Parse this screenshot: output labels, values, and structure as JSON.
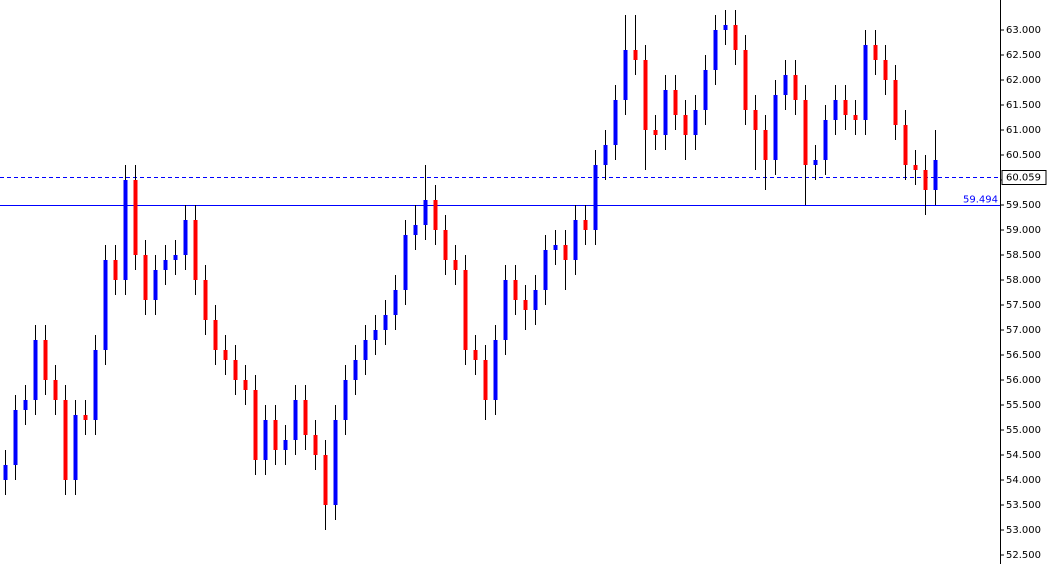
{
  "chart_data": {
    "type": "candlestick",
    "up_color": "#0000ff",
    "down_color": "#ff0000",
    "wick_color": "#000000",
    "ylim": [
      52.32,
      63.6
    ],
    "yticks": [
      {
        "value": 52.5,
        "label": "52.500"
      },
      {
        "value": 53,
        "label": "53.000"
      },
      {
        "value": 53.5,
        "label": "53.500"
      },
      {
        "value": 54,
        "label": "54.000"
      },
      {
        "value": 54.5,
        "label": "54.500"
      },
      {
        "value": 55,
        "label": "55.000"
      },
      {
        "value": 55.5,
        "label": "55.500"
      },
      {
        "value": 56,
        "label": "56.000"
      },
      {
        "value": 56.5,
        "label": "56.500"
      },
      {
        "value": 57,
        "label": "57.000"
      },
      {
        "value": 57.5,
        "label": "57.500"
      },
      {
        "value": 58,
        "label": "58.000"
      },
      {
        "value": 58.5,
        "label": "58.500"
      },
      {
        "value": 59,
        "label": "59.000"
      },
      {
        "value": 59.5,
        "label": "59.500"
      },
      {
        "value": 60,
        "label": "60.000"
      },
      {
        "value": 60.5,
        "label": "60.500"
      },
      {
        "value": 61,
        "label": "61.000"
      },
      {
        "value": 61.5,
        "label": "61.500"
      },
      {
        "value": 62,
        "label": "62.000"
      },
      {
        "value": 62.5,
        "label": "62.500"
      },
      {
        "value": 63,
        "label": "63.000"
      }
    ],
    "hlines": [
      {
        "value": 60.059,
        "label": "60.059",
        "style": "dashed",
        "label_position": "axis",
        "color": "#0000ff"
      },
      {
        "value": 59.494,
        "label": "59.494",
        "style": "solid",
        "label_position": "inside",
        "color": "#0000ff"
      }
    ],
    "open": [
      54.0,
      54.3,
      55.4,
      55.6,
      56.8,
      56.0,
      55.6,
      54.0,
      55.3,
      55.2,
      56.6,
      58.4,
      58.0,
      60.0,
      58.5,
      57.6,
      58.2,
      58.4,
      58.5,
      59.2,
      58.0,
      57.2,
      56.6,
      56.4,
      56.0,
      55.8,
      54.4,
      55.2,
      54.6,
      54.8,
      55.6,
      54.9,
      54.5,
      53.5,
      55.2,
      56.0,
      56.4,
      56.8,
      57.0,
      57.3,
      57.8,
      58.9,
      59.1,
      59.6,
      59.0,
      58.4,
      58.2,
      56.6,
      56.4,
      55.6,
      56.8,
      58.0,
      57.6,
      57.4,
      57.8,
      58.6,
      58.7,
      58.4,
      59.2,
      59.0,
      60.3,
      60.7,
      61.6,
      62.6,
      62.4,
      61.0,
      60.9,
      61.8,
      61.3,
      60.9,
      61.4,
      62.2,
      63.0,
      63.1,
      62.6,
      61.4,
      61.0,
      60.4,
      61.7,
      62.1,
      61.6,
      60.3,
      60.4,
      61.2,
      61.6,
      61.3,
      61.2,
      62.7,
      62.4,
      62.0,
      61.1,
      60.3,
      60.2,
      59.8
    ],
    "high": [
      54.6,
      55.7,
      55.9,
      57.1,
      57.1,
      56.3,
      55.9,
      55.6,
      55.6,
      56.9,
      58.7,
      58.7,
      60.3,
      60.3,
      58.8,
      58.5,
      58.7,
      58.8,
      59.5,
      59.5,
      58.3,
      57.5,
      56.9,
      56.7,
      56.3,
      56.1,
      55.5,
      55.5,
      55.1,
      55.9,
      55.9,
      55.2,
      54.8,
      55.5,
      56.3,
      56.7,
      57.1,
      57.3,
      57.6,
      58.1,
      59.2,
      59.5,
      60.3,
      59.9,
      59.3,
      58.7,
      58.5,
      56.9,
      56.7,
      57.1,
      58.3,
      58.3,
      57.9,
      58.1,
      58.9,
      59.0,
      59.0,
      59.5,
      59.5,
      60.6,
      61.0,
      61.9,
      63.3,
      63.3,
      62.7,
      61.3,
      62.1,
      62.1,
      61.6,
      61.7,
      62.5,
      63.3,
      63.4,
      63.4,
      62.9,
      61.7,
      61.3,
      62.0,
      62.4,
      62.4,
      61.9,
      60.7,
      61.5,
      61.9,
      61.9,
      61.6,
      63.0,
      63.0,
      62.7,
      62.3,
      61.4,
      60.6,
      60.5,
      61.0
    ],
    "low": [
      53.7,
      54.0,
      55.1,
      55.3,
      55.7,
      55.3,
      53.7,
      53.7,
      54.9,
      54.9,
      56.3,
      57.7,
      57.7,
      58.2,
      57.3,
      57.3,
      57.9,
      58.1,
      58.2,
      57.7,
      56.9,
      56.3,
      56.1,
      55.7,
      55.5,
      54.1,
      54.1,
      54.3,
      54.3,
      54.5,
      54.6,
      54.2,
      53.0,
      53.2,
      54.9,
      55.7,
      56.1,
      56.5,
      56.7,
      57.0,
      57.5,
      58.6,
      58.8,
      58.7,
      58.1,
      57.9,
      56.3,
      56.1,
      55.2,
      55.3,
      56.5,
      57.3,
      57.0,
      57.1,
      57.5,
      58.3,
      57.8,
      58.1,
      58.7,
      58.7,
      60.0,
      60.4,
      61.3,
      62.1,
      60.2,
      60.6,
      60.6,
      61.0,
      60.4,
      60.6,
      61.1,
      61.9,
      62.7,
      62.3,
      61.1,
      60.2,
      59.8,
      60.1,
      61.4,
      61.3,
      59.5,
      60.0,
      60.1,
      60.9,
      61.0,
      60.9,
      60.9,
      62.1,
      61.7,
      60.8,
      60.0,
      59.9,
      59.3,
      59.5
    ],
    "close": [
      54.3,
      55.4,
      55.6,
      56.8,
      56.0,
      55.6,
      54.0,
      55.3,
      55.2,
      56.6,
      58.4,
      58.0,
      60.0,
      58.5,
      57.6,
      58.2,
      58.4,
      58.5,
      59.2,
      58.0,
      57.2,
      56.6,
      56.4,
      56.0,
      55.8,
      54.4,
      55.2,
      54.6,
      54.8,
      55.6,
      54.9,
      54.5,
      53.5,
      55.2,
      56.0,
      56.4,
      56.8,
      57.0,
      57.3,
      57.8,
      58.9,
      59.1,
      59.6,
      59.0,
      58.4,
      58.2,
      56.6,
      56.4,
      55.6,
      56.8,
      58.0,
      57.6,
      57.4,
      57.8,
      58.6,
      58.7,
      58.4,
      59.2,
      59.0,
      60.3,
      60.7,
      61.6,
      62.6,
      62.4,
      61.0,
      60.9,
      61.8,
      61.3,
      60.9,
      61.4,
      62.2,
      63.0,
      63.1,
      62.6,
      61.4,
      61.0,
      60.4,
      61.7,
      62.1,
      61.6,
      60.3,
      60.4,
      61.2,
      61.6,
      61.3,
      61.2,
      62.7,
      62.4,
      62.0,
      61.1,
      60.3,
      60.2,
      59.8,
      60.4
    ]
  }
}
